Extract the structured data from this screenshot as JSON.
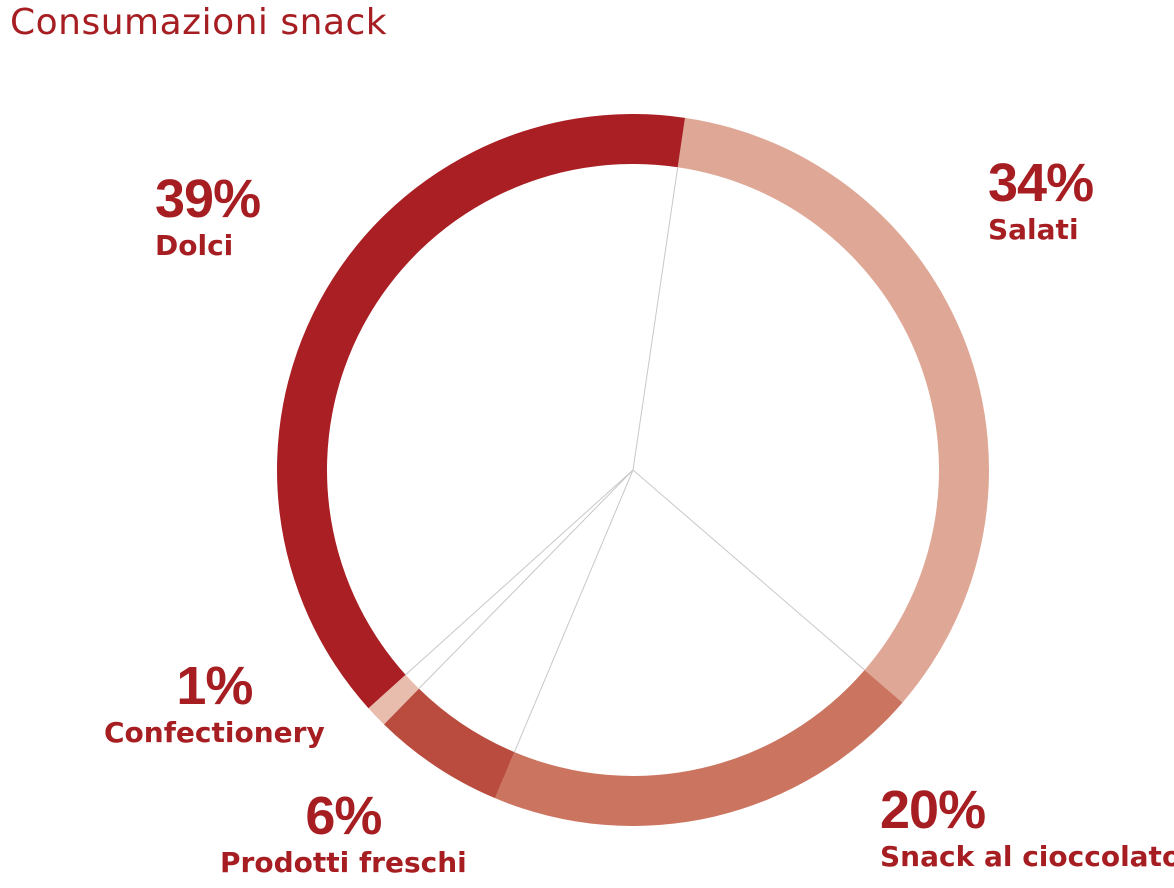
{
  "chart_data": {
    "type": "pie",
    "title": "Consumazioni snack",
    "categories": [
      "Dolci",
      "Salati",
      "Snack al cioccolato",
      "Prodotti freschi",
      "Confectionery"
    ],
    "values": [
      39,
      34,
      20,
      6,
      1
    ],
    "labels": [
      "39%",
      "34%",
      "20%",
      "6%",
      "1%"
    ],
    "colors": [
      "#a91f24",
      "#dfa795",
      "#cb7561",
      "#b94c3e",
      "#e8bdad"
    ],
    "style": "donut",
    "legend": "none"
  }
}
